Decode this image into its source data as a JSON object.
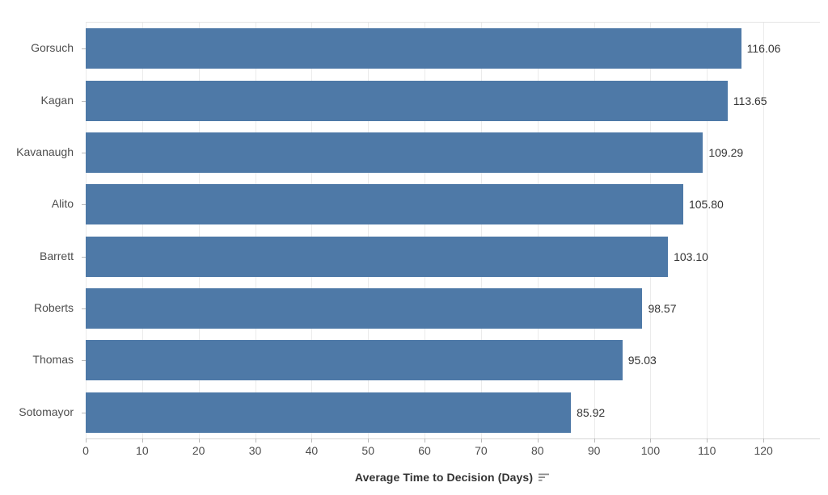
{
  "chart_data": {
    "type": "bar",
    "orientation": "horizontal",
    "title": "",
    "xlabel": "Average Time to Decision (Days)",
    "ylabel": "",
    "categories": [
      "Gorsuch",
      "Kagan",
      "Kavanaugh",
      "Alito",
      "Barrett",
      "Roberts",
      "Thomas",
      "Sotomayor"
    ],
    "values": [
      116.06,
      113.65,
      109.29,
      105.8,
      103.1,
      98.57,
      95.03,
      85.92
    ],
    "value_labels": [
      "116.06",
      "113.65",
      "109.29",
      "105.80",
      "103.10",
      "98.57",
      "95.03",
      "85.92"
    ],
    "xlim": [
      0,
      130
    ],
    "x_ticks": [
      0,
      10,
      20,
      30,
      40,
      50,
      60,
      70,
      80,
      90,
      100,
      110,
      120
    ],
    "x_tick_labels": [
      "0",
      "10",
      "20",
      "30",
      "40",
      "50",
      "60",
      "70",
      "80",
      "90",
      "100",
      "110",
      "120"
    ],
    "grid": true,
    "legend": "none",
    "sort_order": "descending",
    "bar_color": "#4e79a7",
    "sort_icon": "sort-descending-icon"
  }
}
